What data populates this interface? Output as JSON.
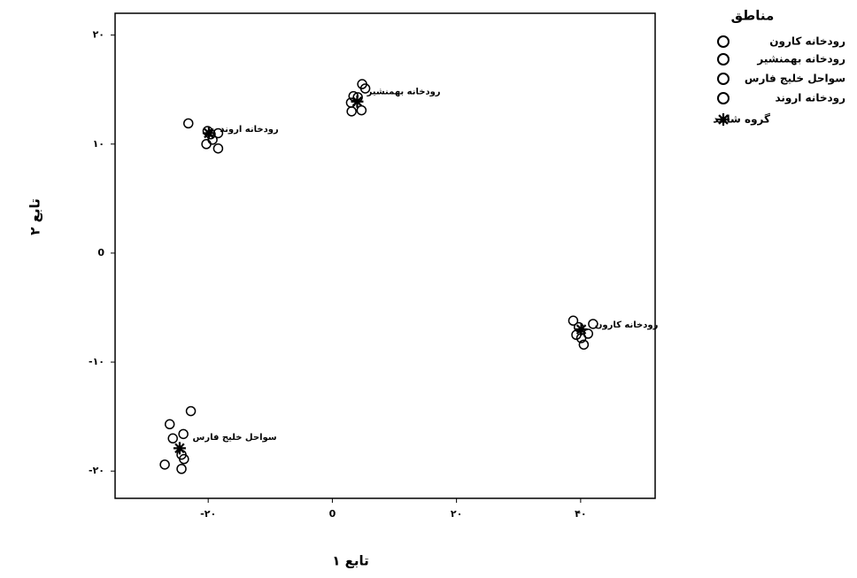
{
  "chart_data": {
    "type": "scatter",
    "xlabel": "تابع ۱",
    "ylabel": "تابع ۲",
    "legend_title": "مناطق",
    "legend": "right",
    "xlim": [
      -35,
      52
    ],
    "ylim": [
      -22.5,
      22
    ],
    "xticks": [
      {
        "value": -20,
        "label": "-۲۰"
      },
      0,
      {
        "value": 20,
        "label": "۲۰"
      },
      {
        "value": 40,
        "label": "۴۰"
      }
    ],
    "yticks": [
      {
        "value": 20,
        "label": "۲۰"
      },
      {
        "value": 10,
        "label": "۱۰"
      },
      0,
      {
        "value": -10,
        "label": "-۱۰"
      },
      {
        "value": -20,
        "label": "-۲۰"
      }
    ],
    "series": [
      {
        "name": "رودخانه کارون",
        "color": "#000000",
        "marker": "circle",
        "x": [
          38.8,
          42.0,
          39.7,
          41.2,
          39.3,
          40.5,
          40.1
        ],
        "y": [
          -6.2,
          -6.5,
          -6.8,
          -7.4,
          -7.5,
          -8.4,
          -7.8
        ]
      },
      {
        "name": "رودخانه بهمنشیر",
        "color": "#000000",
        "marker": "circle",
        "x": [
          4.8,
          5.3,
          3.4,
          4.1,
          3.1,
          4.7,
          3.0
        ],
        "y": [
          15.5,
          15.1,
          14.4,
          14.3,
          13.0,
          13.1,
          13.8
        ]
      },
      {
        "name": "سواحل خلیج فارس",
        "color": "#000000",
        "marker": "circle",
        "x": [
          -22.8,
          -26.2,
          -25.7,
          -24.0,
          -24.3,
          -23.9,
          -27.0,
          -24.3
        ],
        "y": [
          -14.5,
          -15.7,
          -17.0,
          -16.6,
          -18.5,
          -18.9,
          -19.4,
          -19.8
        ]
      },
      {
        "name": "رودخانه اروند",
        "color": "#000000",
        "marker": "circle",
        "x": [
          -23.2,
          -20.1,
          -19.6,
          -18.4,
          -20.3,
          -18.4,
          -19.3
        ],
        "y": [
          11.9,
          11.2,
          10.9,
          11.0,
          10.0,
          9.6,
          10.4
        ]
      },
      {
        "name": "گروه شاهد",
        "color": "#000000",
        "marker": "star",
        "x": [
          40.1,
          4.0,
          -24.6,
          -19.9
        ],
        "y": [
          -7.0,
          13.9,
          -17.9,
          11.0
        ]
      }
    ]
  }
}
